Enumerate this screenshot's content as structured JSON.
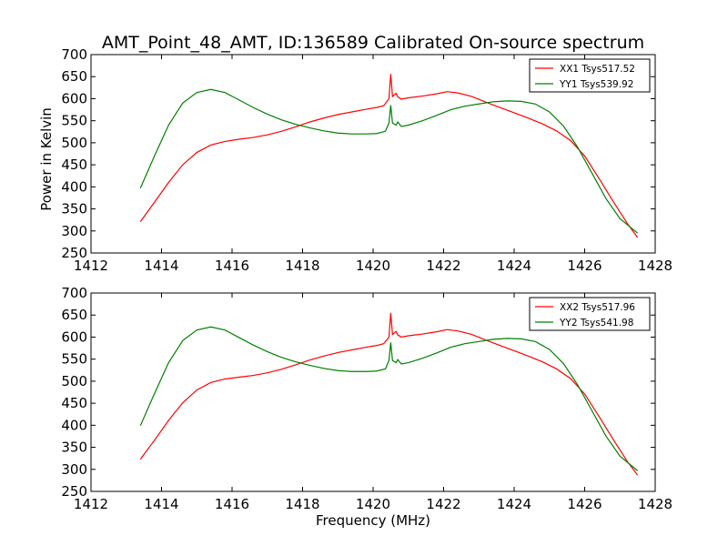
{
  "figure": {
    "title": "AMT_Point_48_AMT, ID:136589 Calibrated On-source spectrum",
    "xlabel": "Frequency (MHz)",
    "ylabel": "Power in Kelvin"
  },
  "chart_data": [
    {
      "type": "line",
      "xlim": [
        1412,
        1428
      ],
      "ylim": [
        250,
        700
      ],
      "xticks": [
        1412,
        1414,
        1416,
        1418,
        1420,
        1422,
        1424,
        1426,
        1428
      ],
      "yticks": [
        250,
        300,
        350,
        400,
        450,
        500,
        550,
        600,
        650,
        700
      ],
      "ylabel": "Power in Kelvin",
      "legend_position": "top-right",
      "series": [
        {
          "name": "XX1 Tsys517.52",
          "color": "#ff0000",
          "x": [
            1413.4,
            1413.8,
            1414.2,
            1414.6,
            1415.0,
            1415.4,
            1415.8,
            1416.2,
            1416.6,
            1417.0,
            1417.4,
            1417.8,
            1418.2,
            1418.6,
            1419.0,
            1419.4,
            1419.8,
            1420.1,
            1420.3,
            1420.45,
            1420.5,
            1420.55,
            1420.65,
            1420.7,
            1420.8,
            1421.0,
            1421.4,
            1421.8,
            1422.1,
            1422.4,
            1422.8,
            1423.2,
            1423.6,
            1424.0,
            1424.4,
            1424.8,
            1425.2,
            1425.6,
            1426.0,
            1426.4,
            1426.8,
            1427.2,
            1427.5
          ],
          "y": [
            321,
            365,
            410,
            450,
            478,
            495,
            503,
            508,
            512,
            518,
            526,
            536,
            547,
            556,
            564,
            570,
            576,
            580,
            584,
            600,
            656,
            605,
            612,
            604,
            599,
            602,
            606,
            611,
            616,
            613,
            605,
            592,
            580,
            568,
            556,
            543,
            527,
            505,
            470,
            420,
            368,
            318,
            285
          ]
        },
        {
          "name": "YY1 Tsys539.92",
          "color": "#008000",
          "x": [
            1413.4,
            1413.8,
            1414.2,
            1414.6,
            1415.0,
            1415.4,
            1415.8,
            1416.2,
            1416.6,
            1417.0,
            1417.4,
            1417.8,
            1418.2,
            1418.6,
            1419.0,
            1419.4,
            1419.8,
            1420.1,
            1420.35,
            1420.45,
            1420.5,
            1420.55,
            1420.65,
            1420.7,
            1420.8,
            1421.0,
            1421.4,
            1421.8,
            1422.2,
            1422.6,
            1423.0,
            1423.4,
            1423.8,
            1424.2,
            1424.6,
            1425.0,
            1425.4,
            1425.8,
            1426.2,
            1426.6,
            1427.0,
            1427.5
          ],
          "y": [
            397,
            470,
            540,
            590,
            614,
            621,
            614,
            597,
            580,
            565,
            552,
            542,
            534,
            527,
            522,
            520,
            520,
            521,
            526,
            545,
            585,
            545,
            540,
            547,
            537,
            540,
            550,
            562,
            575,
            583,
            588,
            593,
            595,
            594,
            588,
            570,
            538,
            490,
            432,
            374,
            328,
            295
          ]
        }
      ]
    },
    {
      "type": "line",
      "xlim": [
        1412,
        1428
      ],
      "ylim": [
        250,
        700
      ],
      "xticks": [
        1412,
        1414,
        1416,
        1418,
        1420,
        1422,
        1424,
        1426,
        1428
      ],
      "yticks": [
        250,
        300,
        350,
        400,
        450,
        500,
        550,
        600,
        650,
        700
      ],
      "xlabel": "Frequency (MHz)",
      "legend_position": "top-right",
      "series": [
        {
          "name": "XX2 Tsys517.96",
          "color": "#ff0000",
          "x": [
            1413.4,
            1413.8,
            1414.2,
            1414.6,
            1415.0,
            1415.4,
            1415.8,
            1416.2,
            1416.6,
            1417.0,
            1417.4,
            1417.8,
            1418.2,
            1418.6,
            1419.0,
            1419.4,
            1419.8,
            1420.1,
            1420.3,
            1420.45,
            1420.5,
            1420.55,
            1420.65,
            1420.7,
            1420.8,
            1421.0,
            1421.4,
            1421.8,
            1422.1,
            1422.4,
            1422.8,
            1423.2,
            1423.6,
            1424.0,
            1424.4,
            1424.8,
            1425.2,
            1425.6,
            1426.0,
            1426.4,
            1426.8,
            1427.2,
            1427.5
          ],
          "y": [
            323,
            366,
            411,
            451,
            480,
            497,
            505,
            509,
            513,
            519,
            527,
            537,
            548,
            557,
            565,
            571,
            577,
            581,
            585,
            600,
            655,
            606,
            613,
            605,
            600,
            603,
            607,
            612,
            617,
            614,
            606,
            593,
            581,
            569,
            557,
            544,
            528,
            506,
            471,
            421,
            369,
            319,
            287
          ]
        },
        {
          "name": "YY2 Tsys541.98",
          "color": "#008000",
          "x": [
            1413.4,
            1413.8,
            1414.2,
            1414.6,
            1415.0,
            1415.4,
            1415.8,
            1416.2,
            1416.6,
            1417.0,
            1417.4,
            1417.8,
            1418.2,
            1418.6,
            1419.0,
            1419.4,
            1419.8,
            1420.1,
            1420.35,
            1420.45,
            1420.5,
            1420.55,
            1420.65,
            1420.7,
            1420.8,
            1421.0,
            1421.4,
            1421.8,
            1422.2,
            1422.6,
            1423.0,
            1423.4,
            1423.8,
            1424.2,
            1424.6,
            1425.0,
            1425.4,
            1425.8,
            1426.2,
            1426.6,
            1427.0,
            1427.5
          ],
          "y": [
            399,
            472,
            542,
            592,
            616,
            623,
            616,
            599,
            582,
            567,
            554,
            544,
            536,
            529,
            524,
            522,
            522,
            523,
            528,
            547,
            588,
            547,
            542,
            549,
            539,
            542,
            552,
            564,
            577,
            585,
            590,
            595,
            597,
            596,
            590,
            572,
            540,
            492,
            434,
            376,
            330,
            297
          ]
        }
      ]
    }
  ]
}
